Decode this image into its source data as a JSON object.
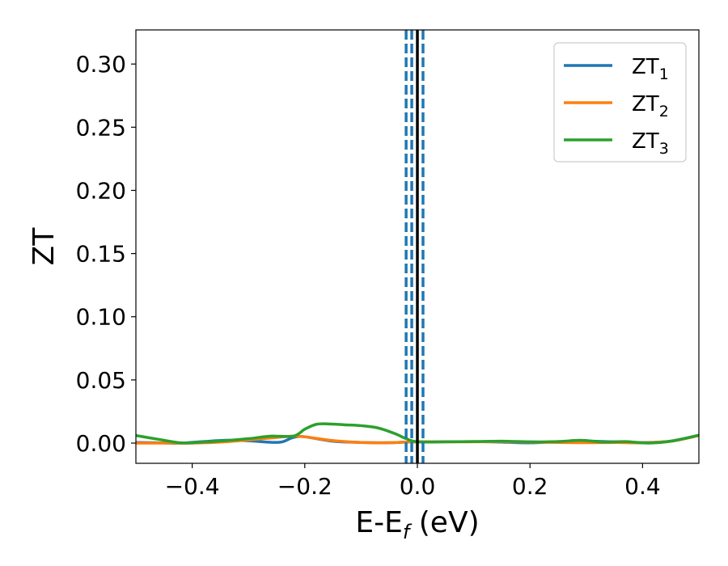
{
  "chart_data": {
    "type": "line",
    "title": "",
    "xlabel": {
      "main": "E-E",
      "sub": "f",
      "suffix": " (eV)"
    },
    "ylabel": "ZT",
    "xlim": [
      -0.5,
      0.5
    ],
    "ylim": [
      -0.016,
      0.327
    ],
    "xticks": [
      -0.4,
      -0.2,
      0.0,
      0.2,
      0.4
    ],
    "xtick_labels": [
      "−0.4",
      "−0.2",
      "0.0",
      "0.2",
      "0.4"
    ],
    "yticks": [
      0.0,
      0.05,
      0.1,
      0.15,
      0.2,
      0.25,
      0.3
    ],
    "ytick_labels": [
      "0.00",
      "0.05",
      "0.10",
      "0.15",
      "0.20",
      "0.25",
      "0.30"
    ],
    "grid": false,
    "legend_position": "top-right",
    "series": [
      {
        "name": "ZT",
        "name_sub": "1",
        "color": "#1f77b4",
        "x": [
          -0.5,
          -0.46,
          -0.42,
          -0.38,
          -0.34,
          -0.3,
          -0.26,
          -0.24,
          -0.22,
          -0.2,
          -0.15,
          -0.1,
          -0.05,
          -0.02,
          0.0,
          0.05,
          0.1,
          0.15,
          0.2,
          0.25,
          0.3,
          0.35,
          0.4,
          0.45,
          0.5
        ],
        "y": [
          0.0005,
          0.0002,
          0.0,
          0.0012,
          0.0022,
          0.0018,
          0.0006,
          0.001,
          0.0045,
          0.005,
          0.0015,
          0.0005,
          0.0003,
          0.0008,
          0.001,
          0.001,
          0.0012,
          0.0008,
          0.0002,
          0.0012,
          0.0016,
          0.001,
          0.0004,
          0.0015,
          0.0062
        ]
      },
      {
        "name": "ZT",
        "name_sub": "2",
        "color": "#ff7f0e",
        "x": [
          -0.5,
          -0.45,
          -0.4,
          -0.35,
          -0.3,
          -0.25,
          -0.22,
          -0.2,
          -0.15,
          -0.1,
          -0.05,
          -0.02,
          0.0,
          0.05,
          0.1,
          0.15,
          0.2,
          0.25,
          0.3,
          0.35,
          0.4,
          0.45,
          0.5
        ],
        "y": [
          0.0,
          0.0,
          0.0,
          0.0008,
          0.0025,
          0.0045,
          0.0055,
          0.005,
          0.002,
          0.0005,
          0.0003,
          0.0008,
          0.001,
          0.001,
          0.001,
          0.0012,
          0.0008,
          0.0005,
          0.0003,
          0.0005,
          0.0002,
          0.0015,
          0.006
        ]
      },
      {
        "name": "ZT",
        "name_sub": "3",
        "color": "#2ca02c",
        "x": [
          -0.5,
          -0.46,
          -0.42,
          -0.38,
          -0.34,
          -0.3,
          -0.26,
          -0.22,
          -0.2,
          -0.18,
          -0.16,
          -0.13,
          -0.1,
          -0.07,
          -0.04,
          -0.02,
          0.0,
          0.05,
          0.1,
          0.15,
          0.2,
          0.25,
          0.29,
          0.33,
          0.37,
          0.41,
          0.45,
          0.5
        ],
        "y": [
          0.006,
          0.003,
          0.0002,
          0.0008,
          0.002,
          0.0035,
          0.0055,
          0.0055,
          0.011,
          0.0148,
          0.0152,
          0.0145,
          0.0138,
          0.012,
          0.0075,
          0.0035,
          0.001,
          0.001,
          0.0012,
          0.0015,
          0.001,
          0.0012,
          0.0022,
          0.0008,
          0.0012,
          0.0,
          0.0015,
          0.0062
        ]
      }
    ],
    "vertical_lines": [
      {
        "x": -0.02,
        "style": "dashed",
        "color": "#1f77b4"
      },
      {
        "x": -0.01,
        "style": "dashed",
        "color": "#1f77b4"
      },
      {
        "x": 0.0,
        "style": "solid",
        "color": "#000000"
      },
      {
        "x": 0.01,
        "style": "dashed",
        "color": "#1f77b4"
      }
    ]
  }
}
